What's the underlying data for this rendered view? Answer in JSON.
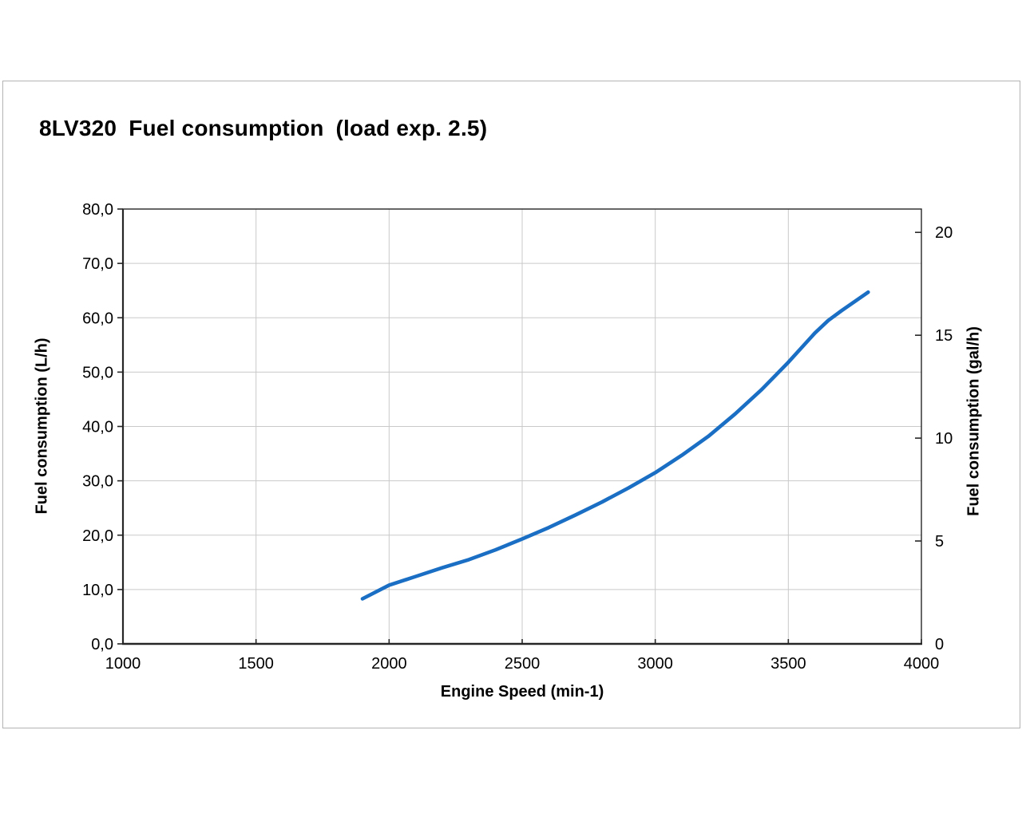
{
  "chart": {
    "title_parts": [
      "8LV320",
      "Fuel consumption",
      "(load exp. 2.5)"
    ]
  },
  "chart_data": {
    "type": "line",
    "title": "8LV320 Fuel consumption (load exp. 2.5)",
    "xlabel": "Engine Speed (min-1)",
    "ylabel_left": "Fuel consumption (L/h)",
    "ylabel_right": "Fuel consumption (gal/h)",
    "xlim": [
      1000,
      4000
    ],
    "ylim_left": [
      0,
      80
    ],
    "x_ticks": [
      1000,
      1500,
      2000,
      2500,
      3000,
      3500,
      4000
    ],
    "y_ticks_left": [
      {
        "label": "0,0",
        "value": 0
      },
      {
        "label": "10,0",
        "value": 10
      },
      {
        "label": "20,0",
        "value": 20
      },
      {
        "label": "30,0",
        "value": 30
      },
      {
        "label": "40,0",
        "value": 40
      },
      {
        "label": "50,0",
        "value": 50
      },
      {
        "label": "60,0",
        "value": 60
      },
      {
        "label": "70,0",
        "value": 70
      },
      {
        "label": "80,0",
        "value": 80
      }
    ],
    "y_ticks_right": [
      {
        "label": "0",
        "value": 0
      },
      {
        "label": "5",
        "value": 5
      },
      {
        "label": "10",
        "value": 10
      },
      {
        "label": "15",
        "value": 15
      },
      {
        "label": "20",
        "value": 20
      }
    ],
    "liters_per_gallon": 3.7854,
    "grid": true,
    "legend": "none",
    "line_color": "#1a6fc4",
    "grid_color": "#c9c9c9",
    "axis_color": "#262626",
    "frame_border_color": "#b3b3b3",
    "series": [
      {
        "name": "Fuel consumption",
        "points": [
          [
            1900,
            8.3
          ],
          [
            2000,
            10.8
          ],
          [
            2100,
            12.4
          ],
          [
            2200,
            14.0
          ],
          [
            2300,
            15.5
          ],
          [
            2400,
            17.3
          ],
          [
            2500,
            19.3
          ],
          [
            2600,
            21.4
          ],
          [
            2700,
            23.7
          ],
          [
            2800,
            26.1
          ],
          [
            2900,
            28.7
          ],
          [
            3000,
            31.5
          ],
          [
            3100,
            34.7
          ],
          [
            3200,
            38.2
          ],
          [
            3300,
            42.3
          ],
          [
            3400,
            46.8
          ],
          [
            3500,
            51.8
          ],
          [
            3600,
            57.2
          ],
          [
            3650,
            59.5
          ],
          [
            3700,
            61.3
          ],
          [
            3800,
            64.7
          ]
        ]
      }
    ]
  }
}
